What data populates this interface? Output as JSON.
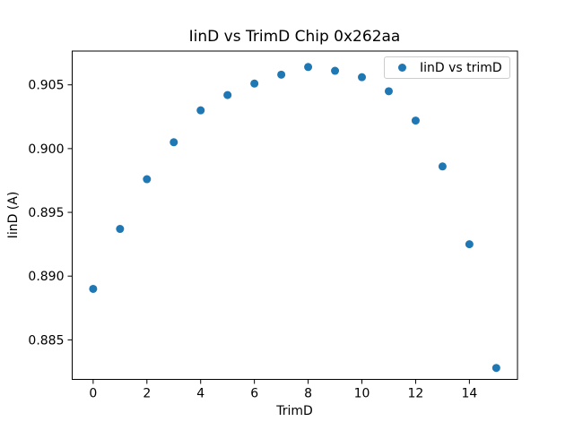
{
  "chart_data": {
    "type": "scatter",
    "title": "IinD vs TrimD Chip 0x262aa",
    "xlabel": "TrimD",
    "ylabel": "IinD (A)",
    "legend": {
      "label": "IinD vs trimD",
      "position": "upper right"
    },
    "marker_color": "#1f77b4",
    "axis_color": "#000000",
    "background_color": "#ffffff",
    "grid": false,
    "x": [
      0,
      1,
      2,
      3,
      4,
      5,
      6,
      7,
      8,
      9,
      10,
      11,
      12,
      13,
      14,
      15
    ],
    "y": [
      0.889,
      0.8937,
      0.8976,
      0.9005,
      0.903,
      0.9042,
      0.9051,
      0.9058,
      0.9064,
      0.9061,
      0.9056,
      0.9045,
      0.9022,
      0.8986,
      0.8925,
      0.8828
    ],
    "xticks": [
      0,
      2,
      4,
      6,
      8,
      10,
      12,
      14
    ],
    "xtick_labels": [
      "0",
      "2",
      "4",
      "6",
      "8",
      "10",
      "12",
      "14"
    ],
    "yticks": [
      0.885,
      0.89,
      0.895,
      0.9,
      0.905
    ],
    "ytick_labels": [
      "0.885",
      "0.890",
      "0.895",
      "0.900",
      "0.905"
    ],
    "xlim": [
      -0.78,
      15.79
    ],
    "ylim": [
      0.8819,
      0.90765
    ]
  }
}
